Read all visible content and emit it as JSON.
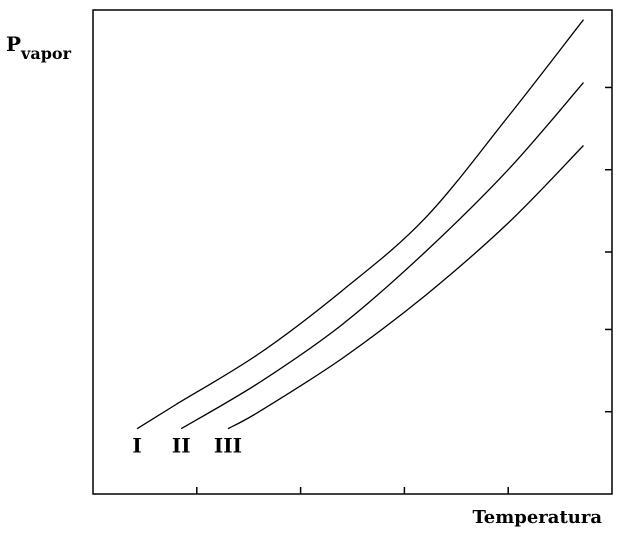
{
  "chart_data": {
    "type": "line",
    "title": "",
    "ylabel": {
      "main": "P",
      "subscript": "vapor"
    },
    "xlabel": "Temperatura",
    "xlim": [
      0,
      100
    ],
    "ylim": [
      0,
      100
    ],
    "x_ticks": [
      20,
      40,
      60,
      80
    ],
    "y_ticks": [
      17,
      34,
      50,
      67,
      84
    ],
    "grid": false,
    "legend": "none",
    "series": [
      {
        "name": "I",
        "x": [
          8.5,
          16,
          32,
          48,
          64,
          80,
          94.5
        ],
        "y": [
          13.5,
          18.5,
          29,
          42,
          57,
          78,
          98
        ]
      },
      {
        "name": "II",
        "x": [
          17,
          32,
          48,
          64,
          80,
          94.5
        ],
        "y": [
          13.5,
          23,
          35,
          50,
          67,
          85
        ]
      },
      {
        "name": "III",
        "x": [
          26,
          32,
          48,
          64,
          80,
          94.5
        ],
        "y": [
          13.5,
          17,
          28,
          41,
          56,
          72
        ]
      }
    ]
  }
}
